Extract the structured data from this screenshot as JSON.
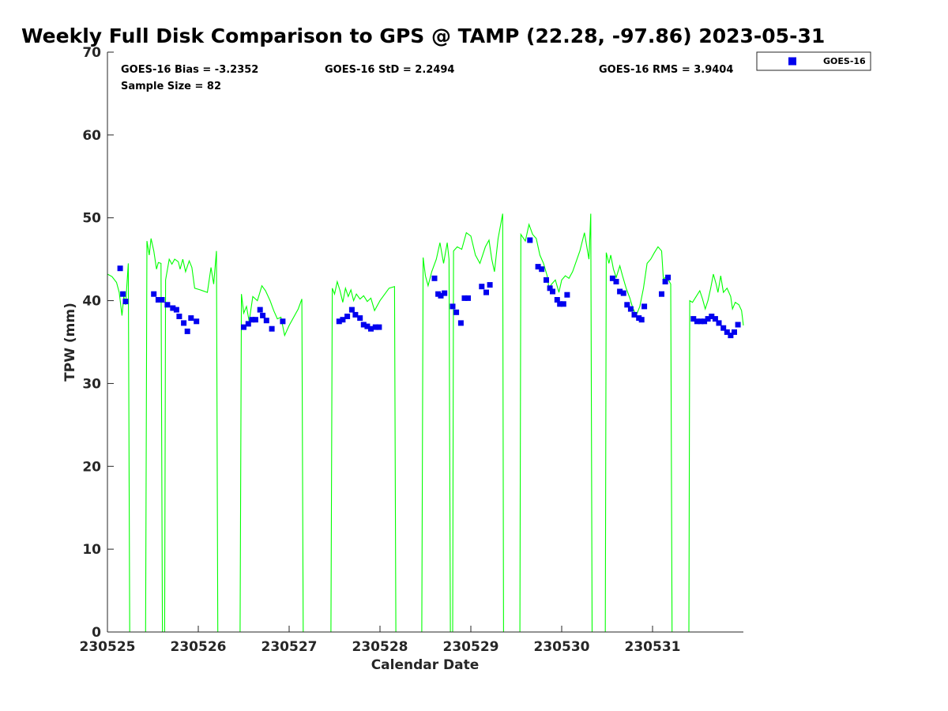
{
  "chart_data": {
    "type": "line+scatter",
    "title": "Weekly Full Disk Comparison to GPS @ TAMP (22.28, -97.86) 2023-05-31",
    "xlabel": "Calendar Date",
    "ylabel": "TPW (mm)",
    "xlim": [
      0,
      7
    ],
    "ylim": [
      0,
      70
    ],
    "yticks": [
      "0",
      "10",
      "20",
      "30",
      "40",
      "50",
      "60",
      "70"
    ],
    "xtick_labels": [
      "230525",
      "230526",
      "230527",
      "230528",
      "230529",
      "230530",
      "230531"
    ],
    "stats": {
      "bias": "GOES-16 Bias = -3.2352",
      "std": "GOES-16 StD = 2.2494",
      "rms": "GOES-16 RMS = 3.9404",
      "sample": "Sample Size = 82"
    },
    "legend": [
      "GOES-16"
    ],
    "colors": {
      "gps_line": "#00ff00",
      "goes_marker": "#0000ee",
      "axis": "#262626"
    },
    "series": [
      {
        "name": "GPS",
        "kind": "line",
        "points": [
          [
            0.0,
            43.2
          ],
          [
            0.05,
            42.9
          ],
          [
            0.1,
            42.2
          ],
          [
            0.13,
            41.0
          ],
          [
            0.16,
            38.2
          ],
          [
            0.18,
            40.5
          ],
          [
            0.2,
            39.5
          ],
          [
            0.23,
            44.5
          ],
          [
            0.245,
            0
          ],
          [
            0.42,
            0
          ],
          [
            0.435,
            47.2
          ],
          [
            0.46,
            45.5
          ],
          [
            0.48,
            47.5
          ],
          [
            0.51,
            46.0
          ],
          [
            0.54,
            43.8
          ],
          [
            0.56,
            44.6
          ],
          [
            0.59,
            44.5
          ],
          [
            0.605,
            0
          ],
          [
            0.63,
            0
          ],
          [
            0.64,
            42.5
          ],
          [
            0.68,
            45.0
          ],
          [
            0.71,
            44.4
          ],
          [
            0.74,
            45.0
          ],
          [
            0.78,
            44.7
          ],
          [
            0.8,
            43.8
          ],
          [
            0.83,
            45.0
          ],
          [
            0.86,
            43.5
          ],
          [
            0.9,
            44.8
          ],
          [
            0.93,
            44.0
          ],
          [
            0.96,
            41.5
          ],
          [
            1.02,
            41.3
          ],
          [
            1.1,
            41.0
          ],
          [
            1.14,
            44.0
          ],
          [
            1.17,
            42.0
          ],
          [
            1.2,
            46.0
          ],
          [
            1.215,
            0
          ],
          [
            1.46,
            0
          ],
          [
            1.475,
            40.8
          ],
          [
            1.5,
            38.5
          ],
          [
            1.53,
            39.3
          ],
          [
            1.56,
            37.5
          ],
          [
            1.6,
            40.5
          ],
          [
            1.65,
            40.0
          ],
          [
            1.7,
            41.8
          ],
          [
            1.74,
            41.2
          ],
          [
            1.79,
            40.0
          ],
          [
            1.83,
            38.8
          ],
          [
            1.87,
            37.8
          ],
          [
            1.91,
            38.0
          ],
          [
            1.95,
            35.8
          ],
          [
            2.0,
            37.0
          ],
          [
            2.1,
            39.0
          ],
          [
            2.14,
            40.2
          ],
          [
            2.155,
            0
          ],
          [
            2.46,
            0
          ],
          [
            2.475,
            41.5
          ],
          [
            2.5,
            40.8
          ],
          [
            2.53,
            42.3
          ],
          [
            2.56,
            41.2
          ],
          [
            2.59,
            39.8
          ],
          [
            2.62,
            41.5
          ],
          [
            2.65,
            40.5
          ],
          [
            2.68,
            41.3
          ],
          [
            2.71,
            40.0
          ],
          [
            2.74,
            40.8
          ],
          [
            2.78,
            40.2
          ],
          [
            2.82,
            40.6
          ],
          [
            2.86,
            39.9
          ],
          [
            2.9,
            40.3
          ],
          [
            2.94,
            38.8
          ],
          [
            3.0,
            40.0
          ],
          [
            3.1,
            41.5
          ],
          [
            3.16,
            41.7
          ],
          [
            3.175,
            0
          ],
          [
            3.46,
            0
          ],
          [
            3.475,
            45.2
          ],
          [
            3.5,
            43.0
          ],
          [
            3.53,
            41.8
          ],
          [
            3.57,
            43.5
          ],
          [
            3.62,
            45.0
          ],
          [
            3.66,
            47.0
          ],
          [
            3.7,
            44.5
          ],
          [
            3.74,
            47.0
          ],
          [
            3.76,
            45.0
          ],
          [
            3.775,
            0
          ],
          [
            3.8,
            0
          ],
          [
            3.81,
            46.0
          ],
          [
            3.85,
            46.5
          ],
          [
            3.9,
            46.2
          ],
          [
            3.95,
            48.2
          ],
          [
            4.0,
            47.8
          ],
          [
            4.05,
            45.5
          ],
          [
            4.1,
            44.5
          ],
          [
            4.16,
            46.5
          ],
          [
            4.2,
            47.3
          ],
          [
            4.23,
            45.0
          ],
          [
            4.26,
            43.5
          ],
          [
            4.3,
            47.5
          ],
          [
            4.35,
            50.5
          ],
          [
            4.36,
            0
          ],
          [
            4.54,
            0
          ],
          [
            4.55,
            48.0
          ],
          [
            4.6,
            47.2
          ],
          [
            4.64,
            49.2
          ],
          [
            4.68,
            48.0
          ],
          [
            4.72,
            47.5
          ],
          [
            4.76,
            45.5
          ],
          [
            4.8,
            44.5
          ],
          [
            4.84,
            43.0
          ],
          [
            4.86,
            41.5
          ],
          [
            4.89,
            42.0
          ],
          [
            4.93,
            42.5
          ],
          [
            4.97,
            41.0
          ],
          [
            5.0,
            42.5
          ],
          [
            5.04,
            43.0
          ],
          [
            5.08,
            42.7
          ],
          [
            5.12,
            43.5
          ],
          [
            5.2,
            46.0
          ],
          [
            5.25,
            48.2
          ],
          [
            5.3,
            45.0
          ],
          [
            5.32,
            50.5
          ],
          [
            5.335,
            0
          ],
          [
            5.48,
            0
          ],
          [
            5.49,
            45.8
          ],
          [
            5.52,
            44.5
          ],
          [
            5.54,
            45.5
          ],
          [
            5.57,
            43.8
          ],
          [
            5.6,
            42.8
          ],
          [
            5.64,
            44.2
          ],
          [
            5.67,
            43.0
          ],
          [
            5.71,
            41.5
          ],
          [
            5.75,
            40.3
          ],
          [
            5.78,
            39.2
          ],
          [
            5.82,
            38.2
          ],
          [
            5.86,
            39.3
          ],
          [
            5.9,
            41.5
          ],
          [
            5.94,
            44.5
          ],
          [
            5.98,
            45.0
          ],
          [
            6.02,
            45.8
          ],
          [
            6.06,
            46.5
          ],
          [
            6.1,
            46.0
          ],
          [
            6.12,
            42.5
          ],
          [
            6.15,
            43.0
          ],
          [
            6.2,
            42.0
          ],
          [
            6.215,
            0
          ],
          [
            6.4,
            0
          ],
          [
            6.41,
            40.0
          ],
          [
            6.44,
            39.8
          ],
          [
            6.48,
            40.5
          ],
          [
            6.52,
            41.2
          ],
          [
            6.55,
            40.2
          ],
          [
            6.58,
            39.0
          ],
          [
            6.61,
            40.0
          ],
          [
            6.64,
            41.5
          ],
          [
            6.67,
            43.2
          ],
          [
            6.7,
            42.0
          ],
          [
            6.72,
            41.0
          ],
          [
            6.75,
            43.0
          ],
          [
            6.78,
            41.0
          ],
          [
            6.82,
            41.5
          ],
          [
            6.86,
            40.5
          ],
          [
            6.88,
            39.0
          ],
          [
            6.91,
            39.8
          ],
          [
            6.95,
            39.5
          ],
          [
            6.98,
            38.8
          ],
          [
            7.0,
            37.0
          ]
        ]
      },
      {
        "name": "GOES-16",
        "kind": "scatter",
        "points": [
          [
            0.14,
            43.9
          ],
          [
            0.17,
            40.8
          ],
          [
            0.2,
            39.9
          ],
          [
            0.51,
            40.8
          ],
          [
            0.56,
            40.1
          ],
          [
            0.6,
            40.1
          ],
          [
            0.66,
            39.5
          ],
          [
            0.72,
            39.1
          ],
          [
            0.76,
            38.9
          ],
          [
            0.79,
            38.1
          ],
          [
            0.84,
            37.3
          ],
          [
            0.88,
            36.3
          ],
          [
            0.92,
            37.9
          ],
          [
            0.98,
            37.5
          ],
          [
            1.5,
            36.8
          ],
          [
            1.55,
            37.2
          ],
          [
            1.59,
            37.7
          ],
          [
            1.63,
            37.7
          ],
          [
            1.68,
            38.9
          ],
          [
            1.71,
            38.2
          ],
          [
            1.75,
            37.6
          ],
          [
            1.81,
            36.6
          ],
          [
            1.93,
            37.5
          ],
          [
            2.55,
            37.5
          ],
          [
            2.59,
            37.7
          ],
          [
            2.64,
            38.1
          ],
          [
            2.69,
            38.9
          ],
          [
            2.73,
            38.3
          ],
          [
            2.78,
            37.9
          ],
          [
            2.82,
            37.1
          ],
          [
            2.86,
            36.9
          ],
          [
            2.9,
            36.6
          ],
          [
            2.95,
            36.8
          ],
          [
            2.99,
            36.8
          ],
          [
            3.6,
            42.7
          ],
          [
            3.64,
            40.8
          ],
          [
            3.67,
            40.6
          ],
          [
            3.71,
            40.9
          ],
          [
            3.8,
            39.3
          ],
          [
            3.84,
            38.6
          ],
          [
            3.89,
            37.3
          ],
          [
            3.93,
            40.3
          ],
          [
            3.97,
            40.3
          ],
          [
            4.12,
            41.7
          ],
          [
            4.17,
            41.0
          ],
          [
            4.21,
            41.9
          ],
          [
            4.65,
            47.3
          ],
          [
            4.74,
            44.1
          ],
          [
            4.78,
            43.8
          ],
          [
            4.83,
            42.5
          ],
          [
            4.87,
            41.5
          ],
          [
            4.9,
            41.1
          ],
          [
            4.95,
            40.1
          ],
          [
            4.98,
            39.6
          ],
          [
            5.02,
            39.6
          ],
          [
            5.06,
            40.7
          ],
          [
            5.56,
            42.7
          ],
          [
            5.6,
            42.3
          ],
          [
            5.64,
            41.1
          ],
          [
            5.68,
            40.9
          ],
          [
            5.72,
            39.5
          ],
          [
            5.76,
            39.0
          ],
          [
            5.8,
            38.3
          ],
          [
            5.85,
            37.9
          ],
          [
            5.88,
            37.7
          ],
          [
            5.91,
            39.3
          ],
          [
            6.1,
            40.8
          ],
          [
            6.14,
            42.3
          ],
          [
            6.17,
            42.8
          ],
          [
            6.45,
            37.8
          ],
          [
            6.49,
            37.5
          ],
          [
            6.53,
            37.5
          ],
          [
            6.57,
            37.5
          ],
          [
            6.61,
            37.8
          ],
          [
            6.65,
            38.1
          ],
          [
            6.69,
            37.8
          ],
          [
            6.73,
            37.3
          ],
          [
            6.78,
            36.7
          ],
          [
            6.82,
            36.2
          ],
          [
            6.86,
            35.8
          ],
          [
            6.9,
            36.2
          ],
          [
            6.94,
            37.1
          ]
        ]
      }
    ]
  }
}
